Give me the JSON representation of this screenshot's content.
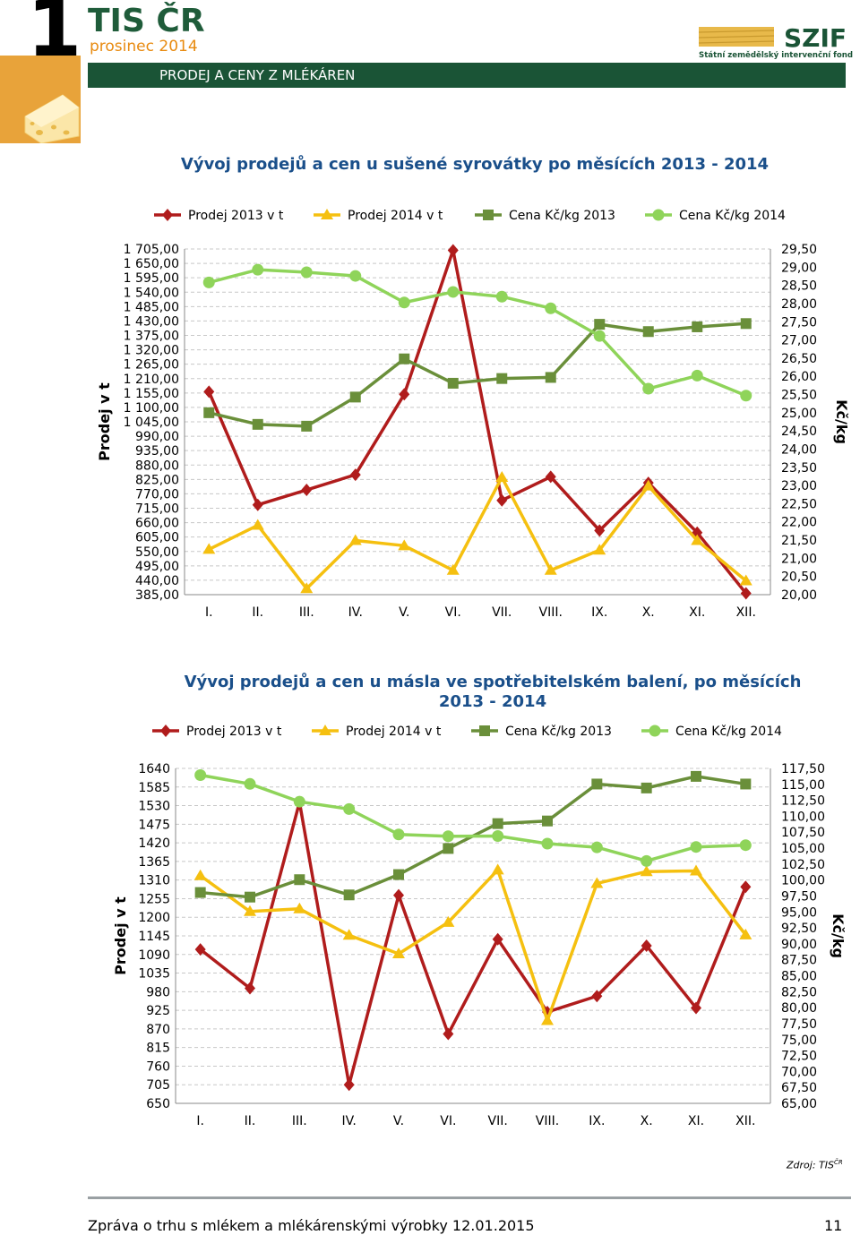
{
  "header": {
    "number": "1",
    "title": "TIS ČR",
    "subtitle": "prosinec 2014",
    "section": "PRODEJ A CENY Z MLÉKÁREN",
    "logo_text": "SZIF",
    "logo_subtext": "Státní zemědělský intervenční fond"
  },
  "colors": {
    "green_bar": "#1a5436",
    "orange": "#e8a33a",
    "title_blue": "#1a4f8a",
    "s2013": "#b01c1c",
    "s2014": "#f5c010",
    "p2013": "#6a8f3a",
    "p2014": "#8fd45a"
  },
  "chart_data": [
    {
      "type": "line",
      "title": "Vývoj prodejů a cen u sušené syrovátky po měsících 2013 - 2014",
      "categories": [
        "I.",
        "II.",
        "III.",
        "IV.",
        "V.",
        "VI.",
        "VII.",
        "VIII.",
        "IX.",
        "X.",
        "XI.",
        "XII."
      ],
      "ylabel": "Prodej v t",
      "y2label": "Kč/kg",
      "ylim": [
        385,
        1705
      ],
      "y2lim": [
        20,
        29.5
      ],
      "yticks": [
        "1 705,00",
        "1 650,00",
        "1 595,00",
        "1 540,00",
        "1 485,00",
        "1 430,00",
        "1 375,00",
        "1 320,00",
        "1 265,00",
        "1 210,00",
        "1 155,00",
        "1 100,00",
        "1 045,00",
        "990,00",
        "935,00",
        "880,00",
        "825,00",
        "770,00",
        "715,00",
        "660,00",
        "605,00",
        "550,00",
        "495,00",
        "440,00",
        "385,00"
      ],
      "y2ticks": [
        "29,50",
        "29,00",
        "28,50",
        "28,00",
        "27,50",
        "27,00",
        "26,50",
        "26,00",
        "25,50",
        "25,00",
        "24,50",
        "24,00",
        "23,50",
        "23,00",
        "22,50",
        "22,00",
        "21,50",
        "21,00",
        "20,50",
        "20,00"
      ],
      "legend_position": "top",
      "series": [
        {
          "name": "Prodej 2013 v t",
          "axis": "left",
          "marker": "diamond",
          "values": [
            1160,
            728,
            785,
            843,
            1150,
            1700,
            745,
            835,
            630,
            812,
            622,
            390
          ]
        },
        {
          "name": "Prodej 2014 v t",
          "axis": "left",
          "marker": "triangle",
          "values": [
            558,
            650,
            408,
            592,
            572,
            478,
            833,
            478,
            555,
            800,
            592,
            438
          ]
        },
        {
          "name": "Cena Kč/kg 2013",
          "axis": "right",
          "marker": "square",
          "values": [
            25.0,
            24.68,
            24.63,
            25.43,
            26.48,
            25.81,
            25.94,
            25.97,
            27.43,
            27.23,
            27.36,
            27.45
          ]
        },
        {
          "name": "Cena Kč/kg 2014",
          "axis": "right",
          "marker": "circle",
          "values": [
            28.58,
            28.93,
            28.86,
            28.76,
            28.03,
            28.32,
            28.19,
            27.87,
            27.11,
            25.66,
            26.02,
            25.47
          ]
        }
      ]
    },
    {
      "type": "line",
      "title": "Vývoj prodejů a cen u másla ve spotřebitelském balení, po měsících 2013 - 2014",
      "categories": [
        "I.",
        "II.",
        "III.",
        "IV.",
        "V.",
        "VI.",
        "VII.",
        "VIII.",
        "IX.",
        "X.",
        "XI.",
        "XII."
      ],
      "ylabel": "Prodej v t",
      "y2label": "Kč/kg",
      "ylim": [
        650,
        1640
      ],
      "y2lim": [
        65,
        117.5
      ],
      "yticks": [
        "1640",
        "1585",
        "1530",
        "1475",
        "1420",
        "1365",
        "1310",
        "1255",
        "1200",
        "1145",
        "1090",
        "1035",
        "980",
        "925",
        "870",
        "815",
        "760",
        "705",
        "650"
      ],
      "y2ticks": [
        "117,50",
        "115,00",
        "112,50",
        "110,00",
        "107,50",
        "105,00",
        "102,50",
        "100,00",
        "97,50",
        "95,00",
        "92,50",
        "90,00",
        "87,50",
        "85,00",
        "82,50",
        "80,00",
        "77,50",
        "75,00",
        "72,50",
        "70,00",
        "67,50",
        "65,00"
      ],
      "legend_position": "top",
      "series": [
        {
          "name": "Prodej 2013 v t",
          "axis": "left",
          "marker": "diamond",
          "values": [
            1105,
            990,
            1540,
            705,
            1265,
            855,
            1135,
            920,
            967,
            1116,
            932,
            1290
          ]
        },
        {
          "name": "Prodej 2014 v t",
          "axis": "left",
          "marker": "triangle",
          "values": [
            1323,
            1217,
            1225,
            1147,
            1092,
            1185,
            1340,
            895,
            1300,
            1335,
            1337,
            1148
          ]
        },
        {
          "name": "Cena Kč/kg 2013",
          "axis": "right",
          "marker": "square",
          "values": [
            98.05,
            97.33,
            100.06,
            97.67,
            100.86,
            104.95,
            108.85,
            109.26,
            115.05,
            114.43,
            116.25,
            115.05
          ]
        },
        {
          "name": "Cena Kč/kg 2014",
          "axis": "right",
          "marker": "circle",
          "values": [
            116.45,
            115.07,
            112.28,
            111.13,
            107.15,
            106.87,
            106.9,
            105.71,
            105.13,
            102.99,
            105.19,
            105.47
          ]
        }
      ]
    }
  ],
  "source": {
    "label": "Zdroj: TIS",
    "sup": "ČR"
  },
  "footer": {
    "text": "Zpráva o trhu s mlékem a mlékárenskými výrobky 12.01.2015",
    "page": "11"
  }
}
